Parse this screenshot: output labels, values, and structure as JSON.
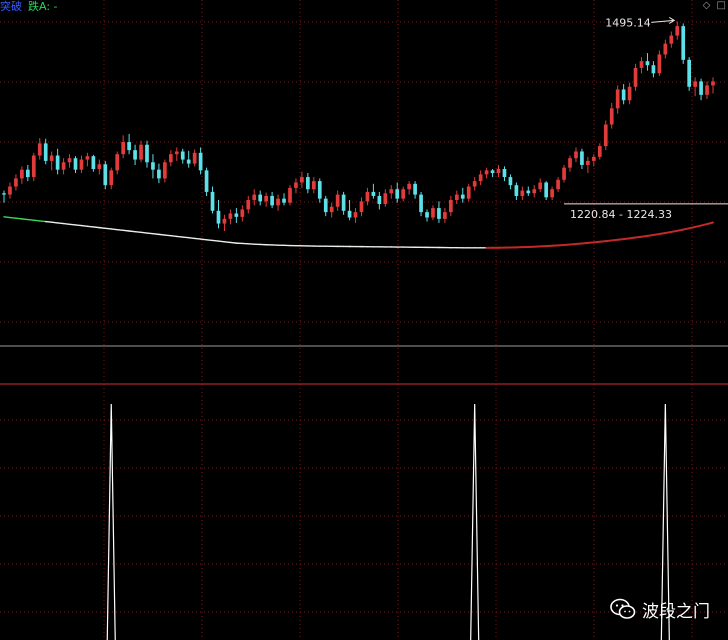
{
  "header": {
    "label_left": "突破",
    "label_right": "跌A: -"
  },
  "window_icons": [
    "◇",
    "□"
  ],
  "watermark": {
    "text": "波段之门",
    "icon": "wechat-icon"
  },
  "annotations": {
    "high_label": "1495.14",
    "range_label": "1220.84 - 1224.33"
  },
  "colors": {
    "up": "#e03c3c",
    "down": "#5de0e8",
    "ma_rising": "#c42828",
    "ma_falling": "#e8f0e8",
    "ma_start": "#3ad85a",
    "grid": "#7a1818",
    "divider": "#b02424",
    "gray_line": "#9a9a9a",
    "signal": "#ffffff"
  },
  "chart_data": [
    {
      "type": "candlestick",
      "title": "",
      "xlabel": "",
      "ylabel": "",
      "ylim": [
        1138,
        1506
      ],
      "grid": true,
      "candles": [
        [
          1240,
          1244,
          1226,
          1238
        ],
        [
          1238,
          1256,
          1232,
          1250
        ],
        [
          1250,
          1268,
          1244,
          1262
        ],
        [
          1262,
          1280,
          1254,
          1275
        ],
        [
          1275,
          1282,
          1258,
          1264
        ],
        [
          1264,
          1300,
          1258,
          1296
        ],
        [
          1296,
          1322,
          1290,
          1314
        ],
        [
          1314,
          1321,
          1283,
          1288
        ],
        [
          1288,
          1302,
          1274,
          1296
        ],
        [
          1296,
          1306,
          1268,
          1275
        ],
        [
          1275,
          1292,
          1268,
          1286
        ],
        [
          1286,
          1298,
          1278,
          1292
        ],
        [
          1292,
          1295,
          1270,
          1275
        ],
        [
          1275,
          1296,
          1270,
          1290
        ],
        [
          1290,
          1300,
          1280,
          1295
        ],
        [
          1295,
          1297,
          1272,
          1276
        ],
        [
          1276,
          1290,
          1268,
          1283
        ],
        [
          1283,
          1288,
          1246,
          1252
        ],
        [
          1252,
          1278,
          1246,
          1274
        ],
        [
          1274,
          1302,
          1268,
          1298
        ],
        [
          1298,
          1326,
          1292,
          1316
        ],
        [
          1316,
          1328,
          1298,
          1304
        ],
        [
          1304,
          1312,
          1282,
          1290
        ],
        [
          1290,
          1318,
          1286,
          1312
        ],
        [
          1312,
          1318,
          1278,
          1286
        ],
        [
          1286,
          1298,
          1262,
          1275
        ],
        [
          1275,
          1284,
          1255,
          1262
        ],
        [
          1262,
          1290,
          1256,
          1286
        ],
        [
          1286,
          1304,
          1280,
          1298
        ],
        [
          1298,
          1308,
          1288,
          1302
        ],
        [
          1302,
          1306,
          1284,
          1290
        ],
        [
          1290,
          1303,
          1278,
          1284
        ],
        [
          1284,
          1305,
          1280,
          1300
        ],
        [
          1300,
          1308,
          1268,
          1274
        ],
        [
          1274,
          1278,
          1236,
          1242
        ],
        [
          1242,
          1250,
          1210,
          1214
        ],
        [
          1214,
          1230,
          1188,
          1195
        ],
        [
          1195,
          1208,
          1184,
          1202
        ],
        [
          1202,
          1216,
          1194,
          1210
        ],
        [
          1210,
          1218,
          1196,
          1205
        ],
        [
          1205,
          1222,
          1198,
          1216
        ],
        [
          1216,
          1236,
          1210,
          1230
        ],
        [
          1230,
          1246,
          1222,
          1238
        ],
        [
          1238,
          1244,
          1222,
          1228
        ],
        [
          1228,
          1241,
          1220,
          1236
        ],
        [
          1236,
          1242,
          1218,
          1222
        ],
        [
          1222,
          1238,
          1214,
          1232
        ],
        [
          1232,
          1240,
          1222,
          1226
        ],
        [
          1226,
          1252,
          1222,
          1248
        ],
        [
          1248,
          1262,
          1240,
          1256
        ],
        [
          1256,
          1272,
          1248,
          1264
        ],
        [
          1264,
          1270,
          1240,
          1246
        ],
        [
          1246,
          1264,
          1240,
          1258
        ],
        [
          1258,
          1262,
          1226,
          1232
        ],
        [
          1232,
          1236,
          1206,
          1212
        ],
        [
          1212,
          1226,
          1204,
          1220
        ],
        [
          1220,
          1244,
          1214,
          1238
        ],
        [
          1238,
          1242,
          1208,
          1214
        ],
        [
          1214,
          1230,
          1200,
          1204
        ],
        [
          1204,
          1218,
          1196,
          1212
        ],
        [
          1212,
          1234,
          1206,
          1228
        ],
        [
          1228,
          1248,
          1222,
          1242
        ],
        [
          1242,
          1254,
          1232,
          1236
        ],
        [
          1236,
          1242,
          1216,
          1224
        ],
        [
          1224,
          1246,
          1220,
          1240
        ],
        [
          1240,
          1252,
          1232,
          1246
        ],
        [
          1246,
          1256,
          1226,
          1232
        ],
        [
          1232,
          1250,
          1228,
          1246
        ],
        [
          1246,
          1258,
          1238,
          1254
        ],
        [
          1254,
          1258,
          1232,
          1238
        ],
        [
          1238,
          1242,
          1206,
          1212
        ],
        [
          1212,
          1216,
          1198,
          1204
        ],
        [
          1204,
          1222,
          1200,
          1218
        ],
        [
          1218,
          1228,
          1196,
          1202
        ],
        [
          1202,
          1218,
          1196,
          1212
        ],
        [
          1212,
          1236,
          1206,
          1230
        ],
        [
          1230,
          1244,
          1224,
          1238
        ],
        [
          1238,
          1248,
          1226,
          1232
        ],
        [
          1232,
          1254,
          1228,
          1250
        ],
        [
          1250,
          1264,
          1244,
          1258
        ],
        [
          1258,
          1274,
          1252,
          1268
        ],
        [
          1268,
          1278,
          1262,
          1274
        ],
        [
          1274,
          1276,
          1264,
          1270
        ],
        [
          1270,
          1282,
          1264,
          1276
        ],
        [
          1276,
          1280,
          1258,
          1264
        ],
        [
          1264,
          1268,
          1246,
          1252
        ],
        [
          1252,
          1256,
          1230,
          1236
        ],
        [
          1236,
          1250,
          1230,
          1244
        ],
        [
          1244,
          1250,
          1236,
          1240
        ],
        [
          1240,
          1252,
          1234,
          1246
        ],
        [
          1246,
          1262,
          1242,
          1256
        ],
        [
          1256,
          1258,
          1230,
          1234
        ],
        [
          1234,
          1250,
          1230,
          1246
        ],
        [
          1246,
          1264,
          1242,
          1260
        ],
        [
          1260,
          1282,
          1256,
          1278
        ],
        [
          1278,
          1296,
          1272,
          1292
        ],
        [
          1292,
          1308,
          1286,
          1302
        ],
        [
          1302,
          1306,
          1276,
          1282
        ],
        [
          1282,
          1294,
          1270,
          1288
        ],
        [
          1288,
          1298,
          1280,
          1294
        ],
        [
          1294,
          1314,
          1290,
          1310
        ],
        [
          1310,
          1348,
          1304,
          1342
        ],
        [
          1342,
          1374,
          1336,
          1366
        ],
        [
          1366,
          1400,
          1358,
          1394
        ],
        [
          1394,
          1402,
          1372,
          1378
        ],
        [
          1378,
          1404,
          1372,
          1398
        ],
        [
          1398,
          1432,
          1392,
          1426
        ],
        [
          1426,
          1442,
          1418,
          1436
        ],
        [
          1436,
          1448,
          1422,
          1430
        ],
        [
          1430,
          1436,
          1412,
          1418
        ],
        [
          1418,
          1452,
          1414,
          1446
        ],
        [
          1446,
          1468,
          1440,
          1462
        ],
        [
          1462,
          1480,
          1456,
          1474
        ],
        [
          1474,
          1495,
          1468,
          1488
        ],
        [
          1488,
          1492,
          1432,
          1438
        ],
        [
          1438,
          1442,
          1392,
          1398
        ],
        [
          1398,
          1412,
          1384,
          1406
        ],
        [
          1406,
          1410,
          1378,
          1386
        ],
        [
          1386,
          1406,
          1380,
          1400
        ],
        [
          1400,
          1412,
          1388,
          1406
        ]
      ],
      "ma_values": [
        1205,
        1204,
        1203,
        1202,
        1201,
        1200,
        1199,
        1198,
        1197,
        1196,
        1195,
        1194,
        1193,
        1192,
        1191,
        1190,
        1189,
        1188,
        1187,
        1186,
        1185,
        1184,
        1183,
        1182,
        1181,
        1180,
        1179,
        1178,
        1177,
        1176,
        1175,
        1174,
        1173,
        1172,
        1171,
        1170,
        1169,
        1168,
        1167,
        1166,
        1165.5,
        1165,
        1164.5,
        1164,
        1163.6,
        1163.3,
        1163,
        1162.7,
        1162.4,
        1162.2,
        1162,
        1161.8,
        1161.6,
        1161.5,
        1161.4,
        1161.3,
        1161.2,
        1161.1,
        1161,
        1160.9,
        1160.8,
        1160.7,
        1160.6,
        1160.5,
        1160.4,
        1160.3,
        1160.2,
        1160.1,
        1160,
        1159.9,
        1159.8,
        1159.7,
        1159.6,
        1159.5,
        1159.4,
        1159.3,
        1159.2,
        1159.1,
        1159,
        1159,
        1159,
        1159,
        1159.1,
        1159.2,
        1159.3,
        1159.5,
        1159.7,
        1160,
        1160.3,
        1160.7,
        1161.1,
        1161.6,
        1162.1,
        1162.7,
        1163.3,
        1164,
        1164.7,
        1165.5,
        1166.3,
        1167.2,
        1168.1,
        1169,
        1170,
        1171,
        1172,
        1173.1,
        1174.3,
        1175.5,
        1176.8,
        1178.1,
        1179.5,
        1181,
        1182.6,
        1184.3,
        1186.1,
        1188,
        1190,
        1192.1,
        1194.3,
        1196.6
      ],
      "horizontal_level": 1224.33,
      "labels": [
        {
          "text_key": "high_label",
          "index": 113
        },
        {
          "text_key": "range_label",
          "index": 94
        }
      ]
    },
    {
      "type": "line",
      "title": "",
      "ylim": [
        0,
        1
      ],
      "signal_indices": [
        18,
        79,
        111
      ],
      "signal_values": [
        1,
        1,
        1
      ]
    }
  ]
}
